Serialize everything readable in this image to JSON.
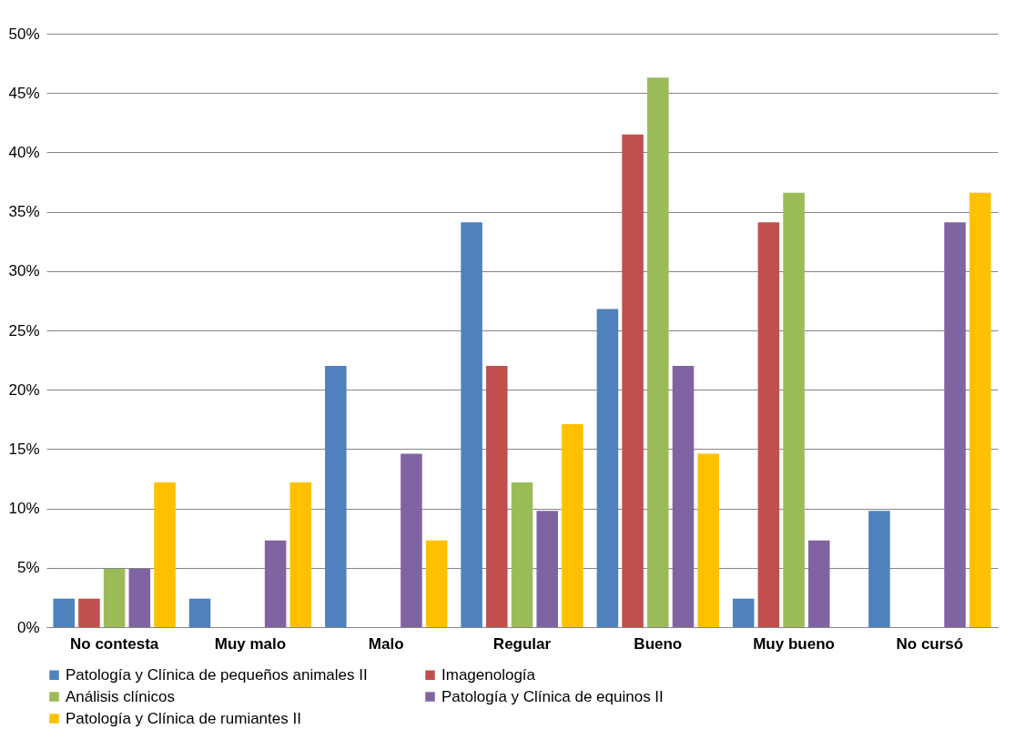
{
  "chart_data": {
    "type": "bar",
    "categories": [
      "No contesta",
      "Muy malo",
      "Malo",
      "Regular",
      "Bueno",
      "Muy bueno",
      "No cursó"
    ],
    "series": [
      {
        "name": "Patología y Clínica de pequeños animales II",
        "color": "#4f81bd",
        "values": [
          2.4,
          2.4,
          22.0,
          34.1,
          26.8,
          2.4,
          9.8
        ]
      },
      {
        "name": "Imagenología",
        "color": "#c0504d",
        "values": [
          2.4,
          0,
          0,
          22.0,
          41.5,
          34.1,
          0
        ]
      },
      {
        "name": "Análisis clínicos",
        "color": "#9bbb59",
        "values": [
          4.9,
          0,
          0,
          12.2,
          46.3,
          36.6,
          0
        ]
      },
      {
        "name": "Patología y Clínica de equinos II",
        "color": "#8064a2",
        "values": [
          4.9,
          7.3,
          14.6,
          9.8,
          22.0,
          7.3,
          34.1
        ]
      },
      {
        "name": "Patología y Clínica de rumiantes II",
        "color": "#ffc000",
        "values": [
          12.2,
          12.2,
          7.3,
          17.1,
          14.6,
          0,
          36.6
        ]
      }
    ],
    "ylim": [
      0,
      50
    ],
    "yticks": [
      {
        "value": 0,
        "label": "0%"
      },
      {
        "value": 5,
        "label": "5%"
      },
      {
        "value": 10,
        "label": "10%"
      },
      {
        "value": 15,
        "label": "15%"
      },
      {
        "value": 20,
        "label": "20%"
      },
      {
        "value": 25,
        "label": "25%"
      },
      {
        "value": 30,
        "label": "30%"
      },
      {
        "value": 35,
        "label": "35%"
      },
      {
        "value": 40,
        "label": "40%"
      },
      {
        "value": 45,
        "label": "45%"
      },
      {
        "value": 50,
        "label": "50%"
      }
    ],
    "grid": "y",
    "legend": "bottom"
  }
}
